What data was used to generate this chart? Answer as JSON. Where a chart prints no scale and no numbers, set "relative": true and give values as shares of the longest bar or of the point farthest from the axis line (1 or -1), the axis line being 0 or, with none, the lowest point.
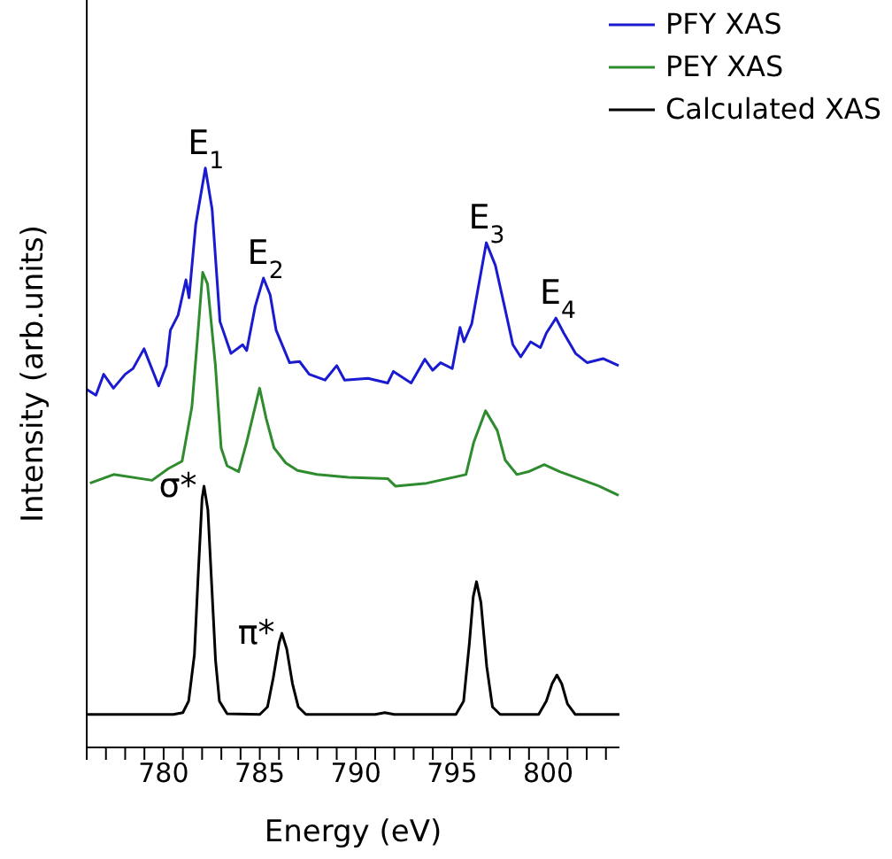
{
  "chart_data": {
    "type": "line",
    "relative": true,
    "xlabel": "Energy (eV)",
    "ylabel": "Intensity (arb.units)",
    "xlim": [
      776,
      803.7
    ],
    "xticks": [
      {
        "value": 776,
        "label": null
      },
      {
        "value": 777,
        "label": null
      },
      {
        "value": 778,
        "label": null
      },
      {
        "value": 779,
        "label": null
      },
      780,
      {
        "value": 781,
        "label": null
      },
      {
        "value": 782,
        "label": null
      },
      {
        "value": 783,
        "label": null
      },
      {
        "value": 784,
        "label": null
      },
      785,
      {
        "value": 786,
        "label": null
      },
      {
        "value": 787,
        "label": null
      },
      {
        "value": 788,
        "label": null
      },
      {
        "value": 789,
        "label": null
      },
      790,
      {
        "value": 791,
        "label": null
      },
      {
        "value": 792,
        "label": null
      },
      {
        "value": 793,
        "label": null
      },
      {
        "value": 794,
        "label": null
      },
      795,
      {
        "value": 796,
        "label": null
      },
      {
        "value": 797,
        "label": null
      },
      {
        "value": 798,
        "label": null
      },
      {
        "value": 799,
        "label": null
      },
      800,
      {
        "value": 801,
        "label": null
      },
      {
        "value": 802,
        "label": null
      },
      {
        "value": 803,
        "label": null
      }
    ],
    "legend": "top right",
    "grid": false,
    "marker": "none",
    "line_style": "solid",
    "series": [
      {
        "name": "PFY XAS",
        "color": "#1a1ad0",
        "x": [
          776.0,
          776.48,
          776.88,
          777.39,
          778.0,
          778.41,
          778.98,
          779.74,
          780.14,
          780.35,
          780.75,
          781.16,
          781.32,
          781.67,
          782.17,
          782.52,
          782.93,
          783.5,
          784.11,
          784.32,
          784.76,
          785.19,
          785.54,
          785.85,
          786.55,
          787.07,
          787.57,
          788.39,
          789.0,
          789.41,
          790.63,
          791.65,
          791.95,
          792.87,
          793.58,
          793.99,
          794.4,
          795.01,
          795.41,
          795.62,
          796.02,
          796.78,
          797.25,
          797.76,
          798.16,
          798.57,
          799.08,
          799.59,
          799.9,
          800.4,
          800.81,
          801.42,
          802.03,
          802.85,
          803.66
        ],
        "values": [
          0.618,
          0.608,
          0.644,
          0.62,
          0.644,
          0.654,
          0.688,
          0.624,
          0.659,
          0.72,
          0.746,
          0.807,
          0.776,
          0.903,
          1.0,
          0.929,
          0.735,
          0.68,
          0.695,
          0.685,
          0.761,
          0.81,
          0.781,
          0.72,
          0.664,
          0.666,
          0.644,
          0.634,
          0.659,
          0.634,
          0.637,
          0.629,
          0.649,
          0.629,
          0.67,
          0.651,
          0.664,
          0.654,
          0.725,
          0.7,
          0.731,
          0.871,
          0.832,
          0.756,
          0.695,
          0.674,
          0.7,
          0.69,
          0.715,
          0.741,
          0.715,
          0.68,
          0.664,
          0.671,
          0.659
        ]
      },
      {
        "name": "PEY XAS",
        "color": "#2e8b2e",
        "x": [
          776.17,
          777.4,
          779.4,
          780.24,
          780.96,
          781.47,
          781.77,
          782.03,
          782.28,
          782.69,
          782.99,
          783.3,
          783.9,
          784.32,
          784.99,
          785.33,
          785.74,
          786.35,
          786.96,
          787.98,
          789.6,
          791.65,
          792.05,
          793.68,
          795.72,
          796.13,
          796.74,
          797.35,
          797.76,
          798.37,
          798.98,
          799.79,
          800.6,
          801.83,
          802.64,
          803.66
        ],
        "values": [
          0.456,
          0.471,
          0.461,
          0.481,
          0.494,
          0.588,
          0.71,
          0.82,
          0.8,
          0.66,
          0.517,
          0.486,
          0.476,
          0.527,
          0.62,
          0.568,
          0.517,
          0.491,
          0.478,
          0.471,
          0.466,
          0.464,
          0.451,
          0.456,
          0.471,
          0.527,
          0.581,
          0.547,
          0.496,
          0.471,
          0.476,
          0.488,
          0.476,
          0.461,
          0.451,
          0.435
        ]
      },
      {
        "name": "Calculated XAS",
        "color": "#000000",
        "x": [
          776,
          780.5,
          781.0,
          781.3,
          781.6,
          781.8,
          782.0,
          782.1,
          782.3,
          782.5,
          782.7,
          782.9,
          783.3,
          785.0,
          785.4,
          785.7,
          786.0,
          786.15,
          786.4,
          786.7,
          787.0,
          787.4,
          791.0,
          791.5,
          792,
          795.2,
          795.6,
          795.9,
          796.1,
          796.27,
          796.5,
          796.8,
          797.1,
          797.5,
          799.5,
          799.9,
          800.2,
          800.45,
          800.7,
          801.0,
          801.4,
          803.7
        ],
        "values": [
          0.057,
          0.057,
          0.06,
          0.08,
          0.16,
          0.3,
          0.43,
          0.451,
          0.41,
          0.28,
          0.15,
          0.08,
          0.058,
          0.057,
          0.07,
          0.12,
          0.18,
          0.197,
          0.17,
          0.11,
          0.07,
          0.057,
          0.057,
          0.06,
          0.057,
          0.057,
          0.08,
          0.18,
          0.26,
          0.286,
          0.25,
          0.14,
          0.07,
          0.057,
          0.057,
          0.08,
          0.11,
          0.125,
          0.11,
          0.075,
          0.057,
          0.057
        ]
      }
    ],
    "annotations": [
      {
        "text": "E$_{1}$",
        "x": 782.2,
        "y": 1.0
      },
      {
        "text": "E$_{2}$",
        "x": 785.3,
        "y": 0.81
      },
      {
        "text": "E$_{3}$",
        "x": 796.8,
        "y": 0.871
      },
      {
        "text": "E$_{4}$",
        "x": 800.5,
        "y": 0.741
      },
      {
        "text": "σ*",
        "x": 782.1,
        "y": 0.451
      },
      {
        "text": "π*",
        "x": 786.15,
        "y": 0.197
      }
    ]
  }
}
